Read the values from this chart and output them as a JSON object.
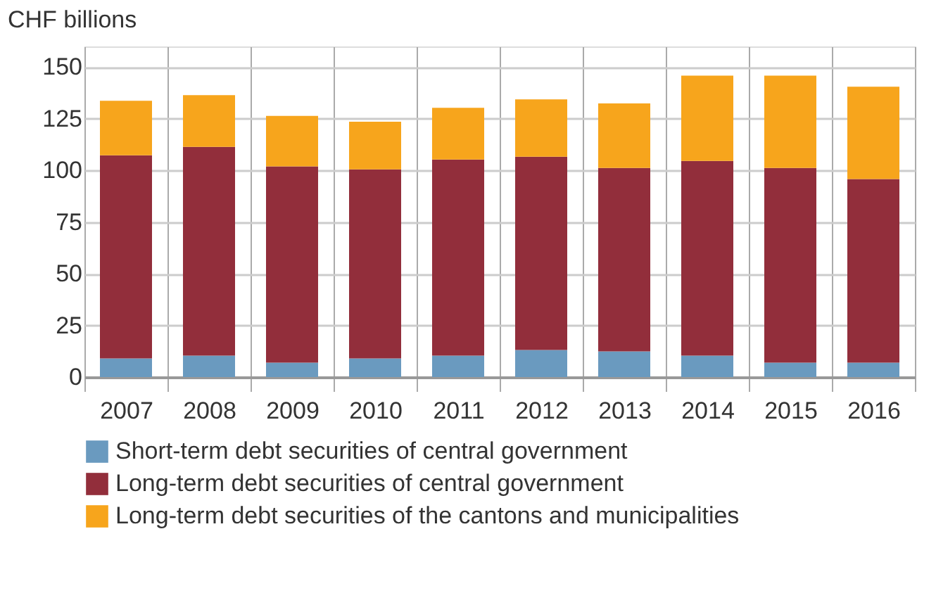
{
  "chart_data": {
    "type": "bar",
    "stacked": true,
    "ylabel": "CHF billions",
    "categories": [
      "2007",
      "2008",
      "2009",
      "2010",
      "2011",
      "2012",
      "2013",
      "2014",
      "2015",
      "2016"
    ],
    "series": [
      {
        "name": "Short-term debt securities of central government",
        "color": "#6a9abf",
        "values": [
          9,
          10.4,
          7,
          9,
          10.4,
          13.1,
          12.4,
          10.4,
          7,
          7
        ]
      },
      {
        "name": "Long-term debt securities of central government",
        "color": "#922e3b",
        "values": [
          98.3,
          101,
          95,
          91.5,
          94.9,
          93.5,
          88.8,
          94.2,
          94.2,
          88.8
        ]
      },
      {
        "name": "Long-term debt securities of the cantons and municipalities",
        "color": "#f7a51c",
        "values": [
          26.4,
          25,
          24.4,
          23.1,
          25,
          27.8,
          31.2,
          41.3,
          44.7,
          44.7
        ]
      }
    ],
    "ylim": [
      0,
      160
    ],
    "yticks": [
      0,
      25,
      50,
      75,
      100,
      125,
      150
    ],
    "grid": true,
    "legend": "bottom"
  }
}
